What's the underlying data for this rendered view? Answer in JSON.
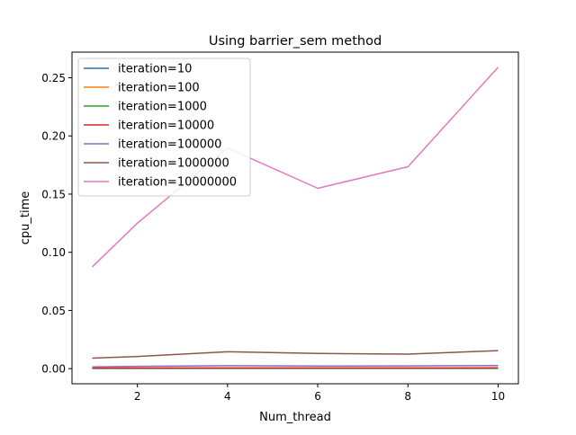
{
  "chart_data": {
    "type": "line",
    "title": "Using barrier_sem method",
    "xlabel": "Num_thread",
    "ylabel": "cpu_time",
    "x": [
      1,
      2,
      4,
      6,
      8,
      10
    ],
    "xlim": [
      0.55,
      10.45
    ],
    "ylim": [
      -0.013,
      0.272
    ],
    "xticks": [
      2,
      4,
      6,
      8,
      10
    ],
    "yticks": [
      0.0,
      0.05,
      0.1,
      0.15,
      0.2,
      0.25
    ],
    "ytick_labels": [
      "0.00",
      "0.05",
      "0.10",
      "0.15",
      "0.20",
      "0.25"
    ],
    "legend_position": "top-left",
    "grid": false,
    "series": [
      {
        "name": "iteration=10",
        "color": "#1f77b4",
        "values": [
          0.0002,
          0.0002,
          0.0002,
          0.0002,
          0.0002,
          0.0002
        ]
      },
      {
        "name": "iteration=100",
        "color": "#ff7f0e",
        "values": [
          0.0002,
          0.0002,
          0.0002,
          0.0002,
          0.0002,
          0.0002
        ]
      },
      {
        "name": "iteration=1000",
        "color": "#2ca02c",
        "values": [
          0.0003,
          0.0003,
          0.0003,
          0.0003,
          0.0003,
          0.0003
        ]
      },
      {
        "name": "iteration=10000",
        "color": "#d62728",
        "values": [
          0.0005,
          0.0005,
          0.0006,
          0.0006,
          0.0006,
          0.0007
        ]
      },
      {
        "name": "iteration=100000",
        "color": "#9467bd",
        "values": [
          0.0015,
          0.002,
          0.0025,
          0.0022,
          0.0024,
          0.0026
        ]
      },
      {
        "name": "iteration=1000000",
        "color": "#8c564b",
        "values": [
          0.009,
          0.0105,
          0.0145,
          0.013,
          0.0125,
          0.0155
        ]
      },
      {
        "name": "iteration=10000000",
        "color": "#e377c2",
        "values": [
          0.0875,
          0.125,
          0.1895,
          0.155,
          0.1735,
          0.259
        ]
      }
    ]
  }
}
